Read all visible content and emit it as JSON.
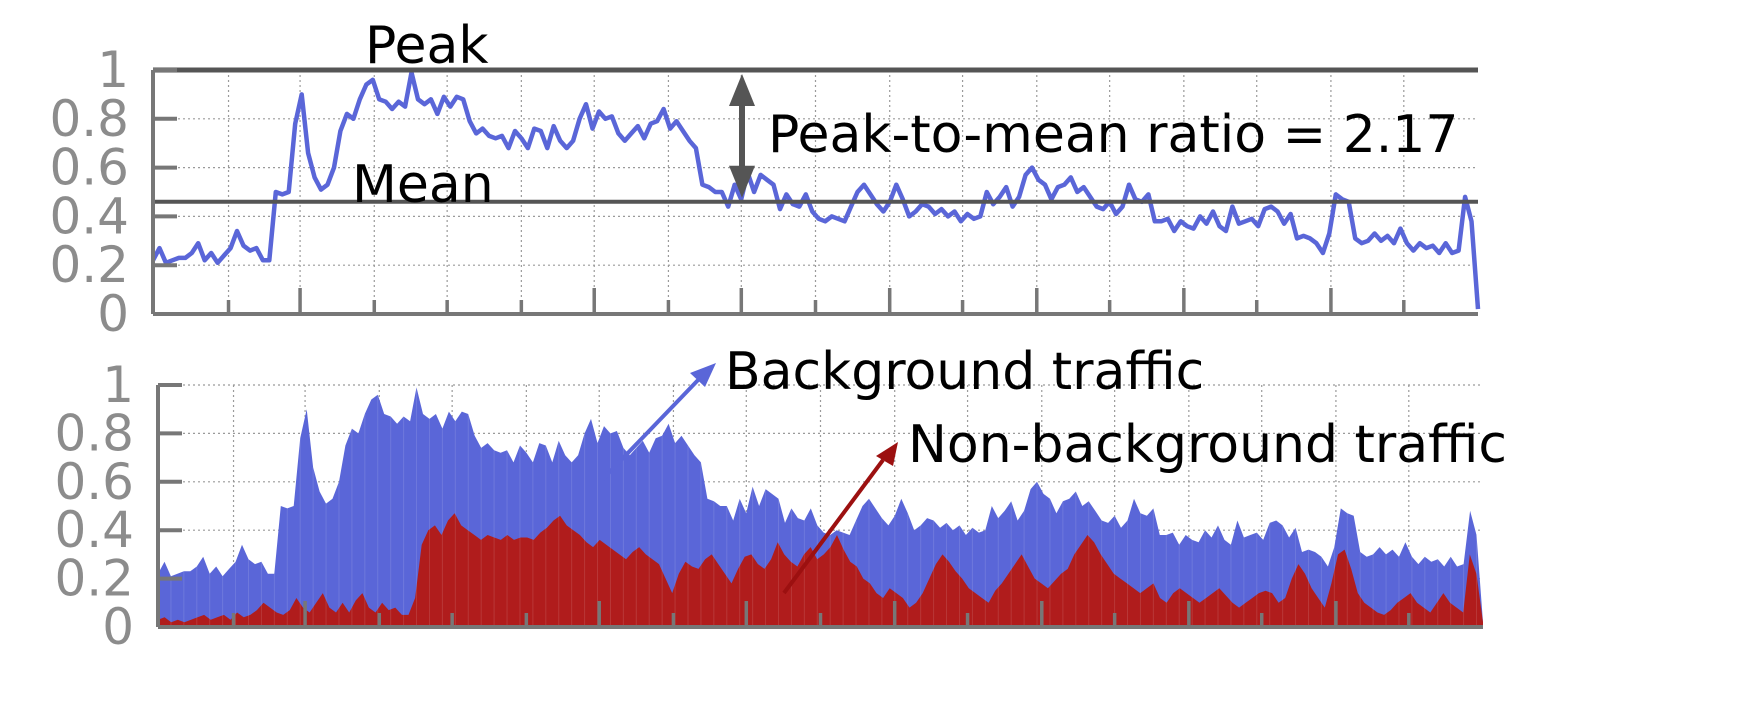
{
  "chart_data": [
    {
      "type": "line",
      "yticks": [
        "0",
        "0.2",
        "0.4",
        "0.6",
        "0.8",
        "1"
      ],
      "ylim": [
        0,
        1
      ],
      "xlim": [
        0,
        180
      ],
      "grid": true,
      "colors": {
        "line": "#5a66d8",
        "reference": "#555555"
      },
      "series": [
        {
          "values": [
            0.22,
            0.27,
            0.21,
            0.22,
            0.23,
            0.23,
            0.25,
            0.29,
            0.22,
            0.25,
            0.21,
            0.24,
            0.27,
            0.34,
            0.28,
            0.26,
            0.27,
            0.22,
            0.22,
            0.5,
            0.49,
            0.5,
            0.78,
            0.9,
            0.66,
            0.56,
            0.51,
            0.53,
            0.6,
            0.75,
            0.82,
            0.8,
            0.88,
            0.94,
            0.96,
            0.88,
            0.87,
            0.84,
            0.87,
            0.85,
            0.99,
            0.88,
            0.86,
            0.88,
            0.82,
            0.89,
            0.85,
            0.89,
            0.88,
            0.79,
            0.74,
            0.76,
            0.73,
            0.72,
            0.73,
            0.68,
            0.75,
            0.72,
            0.68,
            0.76,
            0.75,
            0.68,
            0.77,
            0.71,
            0.68,
            0.71,
            0.8,
            0.86,
            0.76,
            0.83,
            0.8,
            0.81,
            0.74,
            0.71,
            0.74,
            0.77,
            0.72,
            0.78,
            0.79,
            0.84,
            0.76,
            0.79,
            0.75,
            0.71,
            0.68,
            0.53,
            0.52,
            0.5,
            0.5,
            0.44,
            0.53,
            0.47,
            0.58,
            0.5,
            0.57,
            0.55,
            0.53,
            0.43,
            0.49,
            0.45,
            0.44,
            0.49,
            0.42,
            0.39,
            0.38,
            0.4,
            0.39,
            0.38,
            0.44,
            0.5,
            0.53,
            0.49,
            0.45,
            0.42,
            0.46,
            0.53,
            0.47,
            0.4,
            0.42,
            0.45,
            0.44,
            0.41,
            0.43,
            0.4,
            0.42,
            0.38,
            0.41,
            0.39,
            0.4,
            0.5,
            0.45,
            0.48,
            0.52,
            0.44,
            0.48,
            0.57,
            0.6,
            0.55,
            0.53,
            0.47,
            0.52,
            0.53,
            0.56,
            0.5,
            0.52,
            0.48,
            0.44,
            0.43,
            0.46,
            0.41,
            0.44,
            0.53,
            0.47,
            0.46,
            0.49,
            0.38,
            0.38,
            0.39,
            0.34,
            0.38,
            0.36,
            0.35,
            0.4,
            0.37,
            0.42,
            0.36,
            0.34,
            0.44,
            0.37,
            0.38,
            0.39,
            0.36,
            0.43,
            0.44,
            0.42,
            0.37,
            0.41,
            0.31,
            0.32,
            0.31,
            0.29,
            0.25,
            0.33,
            0.49,
            0.47,
            0.46,
            0.31,
            0.29,
            0.3,
            0.33,
            0.3,
            0.32,
            0.29,
            0.35,
            0.29,
            0.26,
            0.29,
            0.27,
            0.28,
            0.25,
            0.29,
            0.25,
            0.26,
            0.48,
            0.38,
            0.02
          ]
        }
      ],
      "reference_lines": [
        {
          "label": "Peak",
          "y": 1.0
        },
        {
          "label": "Mean",
          "y": 0.46
        }
      ],
      "annotation": "Peak-to-mean ratio = 2.17"
    },
    {
      "type": "area",
      "yticks": [
        "0",
        "0.2",
        "0.4",
        "0.6",
        "0.8",
        "1"
      ],
      "ylim": [
        0,
        1
      ],
      "xlim": [
        0,
        180
      ],
      "grid": true,
      "series": [
        {
          "name": "Background traffic",
          "color": "#5a66d8",
          "values": [
            0.22,
            0.27,
            0.21,
            0.22,
            0.23,
            0.23,
            0.25,
            0.29,
            0.22,
            0.25,
            0.21,
            0.24,
            0.27,
            0.34,
            0.28,
            0.26,
            0.27,
            0.22,
            0.22,
            0.5,
            0.49,
            0.5,
            0.78,
            0.9,
            0.66,
            0.56,
            0.51,
            0.53,
            0.6,
            0.75,
            0.82,
            0.8,
            0.88,
            0.94,
            0.96,
            0.88,
            0.87,
            0.84,
            0.87,
            0.85,
            0.99,
            0.88,
            0.86,
            0.88,
            0.82,
            0.89,
            0.85,
            0.89,
            0.88,
            0.79,
            0.74,
            0.76,
            0.73,
            0.72,
            0.73,
            0.68,
            0.75,
            0.72,
            0.68,
            0.76,
            0.75,
            0.68,
            0.77,
            0.71,
            0.68,
            0.71,
            0.8,
            0.86,
            0.76,
            0.83,
            0.8,
            0.81,
            0.74,
            0.71,
            0.74,
            0.77,
            0.72,
            0.78,
            0.79,
            0.84,
            0.76,
            0.79,
            0.75,
            0.71,
            0.68,
            0.53,
            0.52,
            0.5,
            0.5,
            0.44,
            0.53,
            0.47,
            0.58,
            0.5,
            0.57,
            0.55,
            0.53,
            0.43,
            0.49,
            0.45,
            0.44,
            0.49,
            0.42,
            0.39,
            0.38,
            0.4,
            0.39,
            0.38,
            0.44,
            0.5,
            0.53,
            0.49,
            0.45,
            0.42,
            0.46,
            0.53,
            0.47,
            0.4,
            0.42,
            0.45,
            0.44,
            0.41,
            0.43,
            0.4,
            0.42,
            0.38,
            0.41,
            0.39,
            0.4,
            0.5,
            0.45,
            0.48,
            0.52,
            0.44,
            0.48,
            0.57,
            0.6,
            0.55,
            0.53,
            0.47,
            0.52,
            0.53,
            0.56,
            0.5,
            0.52,
            0.48,
            0.44,
            0.43,
            0.46,
            0.41,
            0.44,
            0.53,
            0.47,
            0.46,
            0.49,
            0.38,
            0.38,
            0.39,
            0.34,
            0.38,
            0.36,
            0.35,
            0.4,
            0.37,
            0.42,
            0.36,
            0.34,
            0.44,
            0.37,
            0.38,
            0.39,
            0.36,
            0.43,
            0.44,
            0.42,
            0.37,
            0.41,
            0.31,
            0.32,
            0.31,
            0.29,
            0.25,
            0.33,
            0.49,
            0.47,
            0.46,
            0.31,
            0.29,
            0.3,
            0.33,
            0.3,
            0.32,
            0.29,
            0.35,
            0.29,
            0.26,
            0.29,
            0.27,
            0.28,
            0.25,
            0.29,
            0.25,
            0.26,
            0.48,
            0.38,
            0.02
          ]
        },
        {
          "name": "Non-background traffic",
          "color": "#b01c1c",
          "values": [
            0.03,
            0.04,
            0.02,
            0.03,
            0.02,
            0.03,
            0.04,
            0.05,
            0.03,
            0.04,
            0.05,
            0.03,
            0.06,
            0.04,
            0.05,
            0.07,
            0.1,
            0.08,
            0.06,
            0.05,
            0.07,
            0.12,
            0.08,
            0.06,
            0.1,
            0.14,
            0.08,
            0.06,
            0.1,
            0.06,
            0.11,
            0.14,
            0.08,
            0.06,
            0.1,
            0.07,
            0.08,
            0.05,
            0.05,
            0.12,
            0.34,
            0.4,
            0.42,
            0.38,
            0.44,
            0.47,
            0.42,
            0.4,
            0.38,
            0.36,
            0.38,
            0.37,
            0.36,
            0.38,
            0.36,
            0.37,
            0.37,
            0.36,
            0.39,
            0.41,
            0.44,
            0.46,
            0.42,
            0.4,
            0.38,
            0.35,
            0.33,
            0.36,
            0.34,
            0.32,
            0.3,
            0.28,
            0.31,
            0.33,
            0.3,
            0.28,
            0.26,
            0.2,
            0.14,
            0.22,
            0.27,
            0.25,
            0.24,
            0.28,
            0.3,
            0.26,
            0.22,
            0.18,
            0.24,
            0.29,
            0.3,
            0.26,
            0.24,
            0.28,
            0.35,
            0.3,
            0.27,
            0.25,
            0.3,
            0.33,
            0.28,
            0.3,
            0.33,
            0.38,
            0.32,
            0.27,
            0.25,
            0.2,
            0.18,
            0.14,
            0.12,
            0.16,
            0.14,
            0.12,
            0.08,
            0.1,
            0.14,
            0.2,
            0.26,
            0.3,
            0.27,
            0.23,
            0.2,
            0.16,
            0.14,
            0.12,
            0.1,
            0.15,
            0.18,
            0.22,
            0.26,
            0.3,
            0.25,
            0.2,
            0.18,
            0.16,
            0.19,
            0.22,
            0.24,
            0.3,
            0.34,
            0.38,
            0.35,
            0.3,
            0.26,
            0.22,
            0.2,
            0.18,
            0.16,
            0.14,
            0.16,
            0.18,
            0.12,
            0.1,
            0.14,
            0.16,
            0.14,
            0.12,
            0.1,
            0.12,
            0.14,
            0.16,
            0.13,
            0.1,
            0.08,
            0.1,
            0.12,
            0.14,
            0.15,
            0.14,
            0.1,
            0.12,
            0.2,
            0.26,
            0.22,
            0.16,
            0.12,
            0.08,
            0.18,
            0.3,
            0.32,
            0.24,
            0.14,
            0.1,
            0.08,
            0.06,
            0.05,
            0.07,
            0.1,
            0.12,
            0.14,
            0.1,
            0.08,
            0.06,
            0.1,
            0.14,
            0.1,
            0.08,
            0.06,
            0.3,
            0.22,
            0.02
          ]
        }
      ]
    }
  ]
}
